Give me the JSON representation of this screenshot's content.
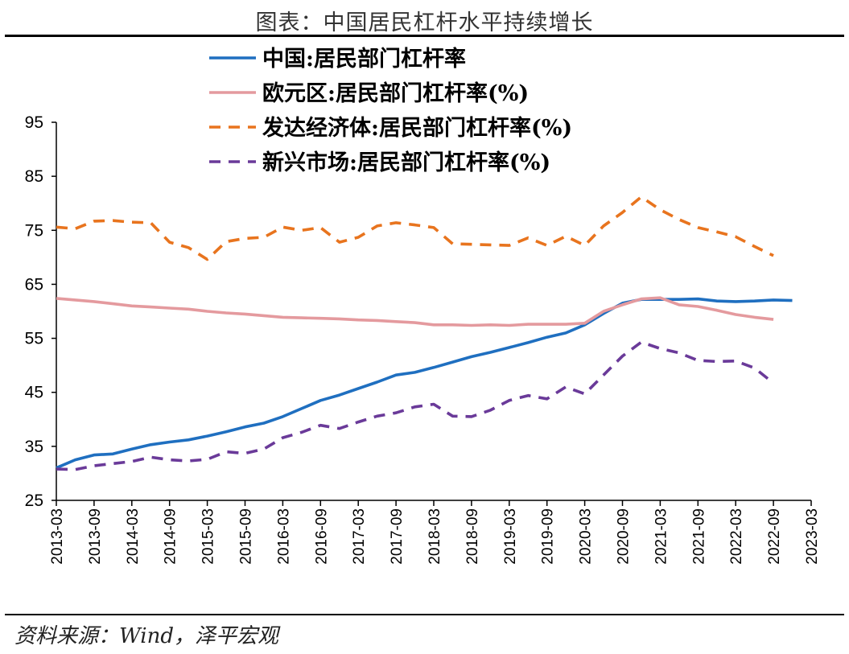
{
  "title": "图表：中国居民杠杆水平持续增长",
  "source": "资料来源：Wind，泽平宏观",
  "chart_data": {
    "type": "line",
    "ylim": [
      25,
      95
    ],
    "yticks": [
      25,
      35,
      45,
      55,
      65,
      75,
      85,
      95
    ],
    "x_ticks": [
      "2013-03",
      "2013-09",
      "2014-03",
      "2014-09",
      "2015-03",
      "2015-09",
      "2016-03",
      "2016-09",
      "2017-03",
      "2017-09",
      "2018-03",
      "2018-09",
      "2019-03",
      "2019-09",
      "2020-03",
      "2020-09",
      "2021-03",
      "2021-09",
      "2022-03",
      "2022-09",
      "2023-03"
    ],
    "legend_position": "top",
    "series": [
      {
        "name": "中国:居民部门杠杆率",
        "color": "#1f6fc0",
        "dash": "solid",
        "x": [
          "2013-03",
          "2013-06",
          "2013-09",
          "2013-12",
          "2014-03",
          "2014-06",
          "2014-09",
          "2014-12",
          "2015-03",
          "2015-06",
          "2015-09",
          "2015-12",
          "2016-03",
          "2016-06",
          "2016-09",
          "2016-12",
          "2017-03",
          "2017-06",
          "2017-09",
          "2017-12",
          "2018-03",
          "2018-06",
          "2018-09",
          "2018-12",
          "2019-03",
          "2019-06",
          "2019-09",
          "2019-12",
          "2020-03",
          "2020-06",
          "2020-09",
          "2020-12",
          "2021-03",
          "2021-06",
          "2021-09",
          "2021-12",
          "2022-03",
          "2022-06",
          "2022-09",
          "2022-12"
        ],
        "values": [
          31.0,
          32.5,
          33.4,
          33.6,
          34.5,
          35.3,
          35.8,
          36.2,
          36.9,
          37.7,
          38.6,
          39.3,
          40.5,
          42.0,
          43.5,
          44.5,
          45.7,
          46.9,
          48.2,
          48.7,
          49.6,
          50.6,
          51.6,
          52.4,
          53.3,
          54.2,
          55.2,
          56.0,
          57.5,
          59.6,
          61.5,
          62.2,
          62.2,
          62.2,
          62.3,
          61.9,
          61.8,
          61.9,
          62.1,
          62.0
        ]
      },
      {
        "name": "欧元区:居民部门杠杆率(%)",
        "color": "#e49a9e",
        "dash": "solid",
        "x": [
          "2013-03",
          "2013-06",
          "2013-09",
          "2013-12",
          "2014-03",
          "2014-06",
          "2014-09",
          "2014-12",
          "2015-03",
          "2015-06",
          "2015-09",
          "2015-12",
          "2016-03",
          "2016-06",
          "2016-09",
          "2016-12",
          "2017-03",
          "2017-06",
          "2017-09",
          "2017-12",
          "2018-03",
          "2018-06",
          "2018-09",
          "2018-12",
          "2019-03",
          "2019-06",
          "2019-09",
          "2019-12",
          "2020-03",
          "2020-06",
          "2020-09",
          "2020-12",
          "2021-03",
          "2021-06",
          "2021-09",
          "2021-12",
          "2022-03",
          "2022-06",
          "2022-09"
        ],
        "values": [
          62.4,
          62.1,
          61.8,
          61.4,
          61.0,
          60.8,
          60.6,
          60.4,
          60.0,
          59.7,
          59.5,
          59.2,
          58.9,
          58.8,
          58.7,
          58.6,
          58.4,
          58.3,
          58.1,
          57.9,
          57.5,
          57.5,
          57.4,
          57.5,
          57.4,
          57.6,
          57.6,
          57.6,
          57.8,
          60.0,
          61.2,
          62.3,
          62.5,
          61.2,
          60.9,
          60.2,
          59.4,
          58.9,
          58.5
        ]
      },
      {
        "name": "发达经济体:居民部门杠杆率(%)",
        "color": "#e8741e",
        "dash": "dashed",
        "x": [
          "2013-03",
          "2013-06",
          "2013-09",
          "2013-12",
          "2014-03",
          "2014-06",
          "2014-09",
          "2014-12",
          "2015-03",
          "2015-06",
          "2015-09",
          "2015-12",
          "2016-03",
          "2016-06",
          "2016-09",
          "2016-12",
          "2017-03",
          "2017-06",
          "2017-09",
          "2017-12",
          "2018-03",
          "2018-06",
          "2018-09",
          "2018-12",
          "2019-03",
          "2019-06",
          "2019-09",
          "2019-12",
          "2020-03",
          "2020-06",
          "2020-09",
          "2020-12",
          "2021-03",
          "2021-06",
          "2021-09",
          "2021-12",
          "2022-03",
          "2022-06",
          "2022-09"
        ],
        "values": [
          75.6,
          75.3,
          76.7,
          76.8,
          76.5,
          76.4,
          72.8,
          71.8,
          69.6,
          72.9,
          73.5,
          73.7,
          75.6,
          75.0,
          75.5,
          72.8,
          73.7,
          75.8,
          76.4,
          76.0,
          75.5,
          72.5,
          72.4,
          72.3,
          72.2,
          73.6,
          72.2,
          73.9,
          72.2,
          75.8,
          78.3,
          81.2,
          78.8,
          77.0,
          75.5,
          74.7,
          73.8,
          72.0,
          70.3
        ]
      },
      {
        "name": "新兴市场:居民部门杠杆率(%)",
        "color": "#6a3a99",
        "dash": "dashed",
        "x": [
          "2013-03",
          "2013-06",
          "2013-09",
          "2013-12",
          "2014-03",
          "2014-06",
          "2014-09",
          "2014-12",
          "2015-03",
          "2015-06",
          "2015-09",
          "2015-12",
          "2016-03",
          "2016-06",
          "2016-09",
          "2016-12",
          "2017-03",
          "2017-06",
          "2017-09",
          "2017-12",
          "2018-03",
          "2018-06",
          "2018-09",
          "2018-12",
          "2019-03",
          "2019-06",
          "2019-09",
          "2019-12",
          "2020-03",
          "2020-06",
          "2020-09",
          "2020-12",
          "2021-03",
          "2021-06",
          "2021-09",
          "2021-12",
          "2022-03",
          "2022-06",
          "2022-09"
        ],
        "values": [
          30.8,
          30.7,
          31.4,
          31.8,
          32.2,
          33.0,
          32.5,
          32.3,
          32.6,
          34.0,
          33.7,
          34.5,
          36.6,
          37.6,
          38.9,
          38.3,
          39.5,
          40.6,
          41.2,
          42.3,
          42.8,
          40.6,
          40.5,
          41.7,
          43.5,
          44.4,
          43.8,
          46.0,
          44.7,
          48.2,
          51.7,
          54.3,
          53.1,
          52.3,
          50.9,
          50.7,
          50.8,
          49.5,
          46.7
        ]
      }
    ]
  }
}
